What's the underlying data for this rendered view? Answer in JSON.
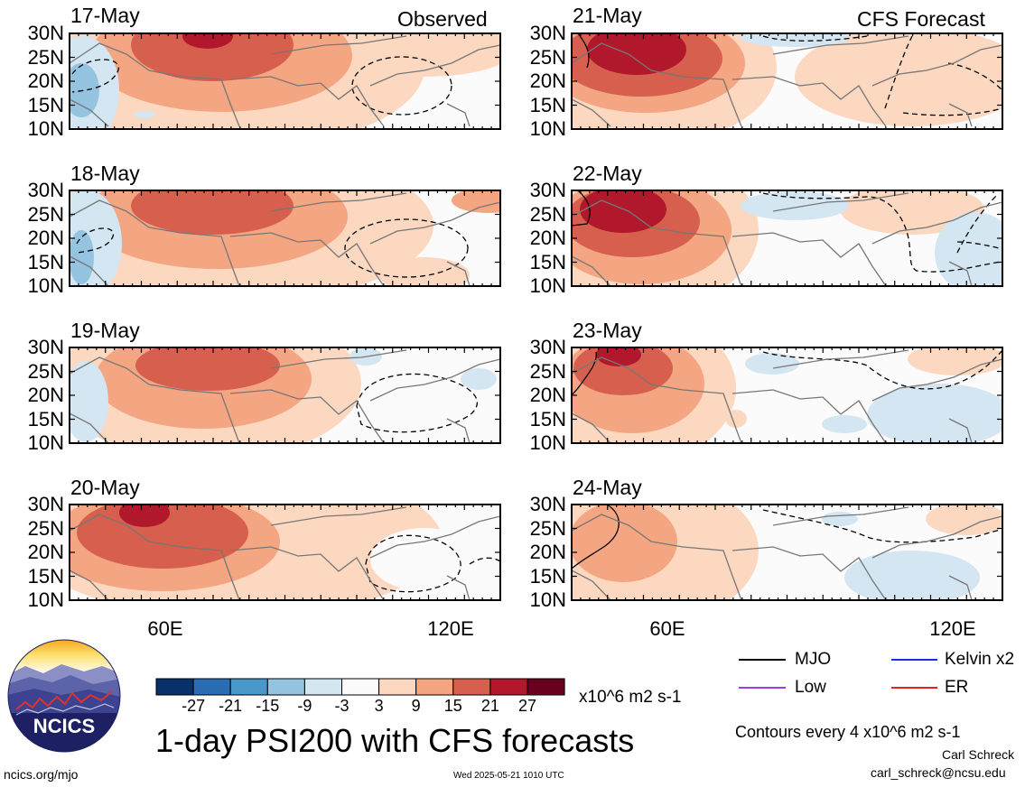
{
  "panels": [
    {
      "date": "17-May",
      "tag": "Observed",
      "column": "left",
      "row": 0
    },
    {
      "date": "18-May",
      "tag": "",
      "column": "left",
      "row": 1
    },
    {
      "date": "19-May",
      "tag": "",
      "column": "left",
      "row": 2
    },
    {
      "date": "20-May",
      "tag": "",
      "column": "left",
      "row": 3
    },
    {
      "date": "21-May",
      "tag": "CFS Forecast",
      "column": "right",
      "row": 0
    },
    {
      "date": "22-May",
      "tag": "",
      "column": "right",
      "row": 1
    },
    {
      "date": "23-May",
      "tag": "",
      "column": "right",
      "row": 2
    },
    {
      "date": "24-May",
      "tag": "",
      "column": "right",
      "row": 3
    }
  ],
  "axes": {
    "lat_labels": [
      "30N",
      "25N",
      "20N",
      "15N",
      "10N"
    ],
    "lon_labels": [
      "60E",
      "120E"
    ]
  },
  "colorbar": {
    "tick_labels": [
      "-27",
      "-21",
      "-15",
      "-9",
      "-3",
      "3",
      "9",
      "15",
      "21",
      "27"
    ],
    "colors": [
      "#08306b",
      "#2b6db3",
      "#4a98c9",
      "#94c4df",
      "#d4e6f2",
      "#fbfbfb",
      "#fcd8c0",
      "#f4a582",
      "#d6604d",
      "#b2182b",
      "#67001f"
    ],
    "units": "x10^6 m2 s-1"
  },
  "title": "1-day PSI200 with CFS forecasts",
  "legend": {
    "items": [
      {
        "label": "MJO",
        "color": "#000000"
      },
      {
        "label": "Kelvin x2",
        "color": "#1c2cf2"
      },
      {
        "label": "Low",
        "color": "#a43ae0"
      },
      {
        "label": "ER",
        "color": "#e8201a"
      }
    ],
    "contour_note": "Contours every 4 x10^6 m2 s-1"
  },
  "credits": {
    "author": "Carl Schreck",
    "email": "carl_schreck@ncsu.edu",
    "site": "ncics.org/mjo",
    "timestamp": "Wed 2025-05-21 1010 UTC",
    "logo_text": "NCICS"
  }
}
